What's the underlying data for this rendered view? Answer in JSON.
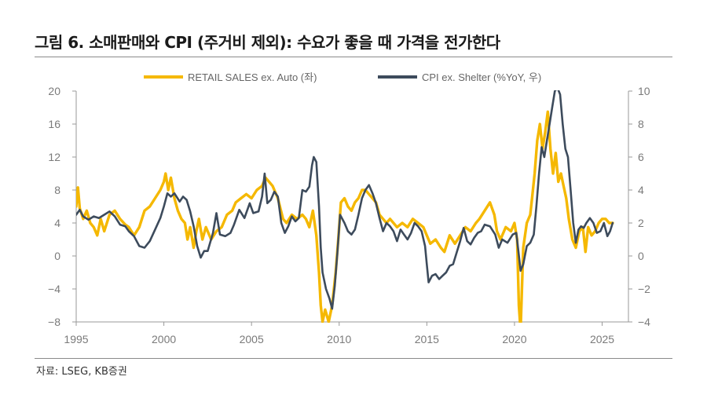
{
  "title": "그림 6. 소매판매와 CPI (주거비 제외): 수요가 좋을 때 가격을 전가한다",
  "source": "자료: LSEG, KB증권",
  "colors": {
    "retail": "#f5b800",
    "cpi": "#3d4b5c",
    "axis": "#999999",
    "tick": "#7a7a7a"
  },
  "chart_data": {
    "type": "line",
    "title": "그림 6. 소매판매와 CPI (주거비 제외): 수요가 좋을 때 가격을 전가한다",
    "xlabel": "",
    "ylabel": "",
    "x_ticks": [
      1995,
      2000,
      2005,
      2010,
      2015,
      2020,
      2025
    ],
    "x_tick_labels": [
      "1995",
      "2000",
      "2005",
      "2010",
      "2015",
      "2020",
      "2025"
    ],
    "xlim": [
      1995,
      2026.5
    ],
    "y_left": {
      "lim": [
        -8,
        20
      ],
      "ticks": [
        20,
        16,
        12,
        8,
        4,
        0,
        -4,
        -8
      ],
      "tick_labels": [
        "20",
        "16",
        "12",
        "8",
        "4",
        "0",
        "−4",
        "−8"
      ]
    },
    "y_right": {
      "lim": [
        -4,
        10
      ],
      "ticks": [
        10,
        8,
        6,
        4,
        2,
        0,
        -2,
        -4
      ],
      "tick_labels": [
        "10",
        "8",
        "6",
        "4",
        "2",
        "0",
        "−2",
        "−4"
      ]
    },
    "legend_position": "top-center",
    "series": [
      {
        "name": "RETAIL SALES ex. Auto (좌)",
        "axis": "left",
        "color": "#f5b800",
        "points": [
          [
            1995.0,
            6.0
          ],
          [
            1995.1,
            8.3
          ],
          [
            1995.2,
            5.8
          ],
          [
            1995.4,
            4.5
          ],
          [
            1995.6,
            5.5
          ],
          [
            1995.8,
            4.0
          ],
          [
            1996.0,
            3.5
          ],
          [
            1996.2,
            2.5
          ],
          [
            1996.4,
            4.5
          ],
          [
            1996.6,
            3.0
          ],
          [
            1996.9,
            5.0
          ],
          [
            1997.2,
            5.5
          ],
          [
            1997.5,
            4.5
          ],
          [
            1997.8,
            3.8
          ],
          [
            1998.0,
            3.5
          ],
          [
            1998.3,
            2.5
          ],
          [
            1998.6,
            3.5
          ],
          [
            1998.9,
            5.5
          ],
          [
            1999.2,
            6.0
          ],
          [
            1999.5,
            7.0
          ],
          [
            1999.8,
            8.0
          ],
          [
            2000.0,
            9.0
          ],
          [
            2000.1,
            10.0
          ],
          [
            2000.25,
            8.0
          ],
          [
            2000.4,
            9.5
          ],
          [
            2000.6,
            7.0
          ],
          [
            2000.8,
            5.5
          ],
          [
            2001.0,
            4.5
          ],
          [
            2001.2,
            4.0
          ],
          [
            2001.35,
            2.0
          ],
          [
            2001.5,
            3.5
          ],
          [
            2001.7,
            1.0
          ],
          [
            2001.85,
            3.0
          ],
          [
            2002.0,
            4.5
          ],
          [
            2002.2,
            2.0
          ],
          [
            2002.4,
            3.5
          ],
          [
            2002.7,
            2.0
          ],
          [
            2003.0,
            3.0
          ],
          [
            2003.3,
            3.5
          ],
          [
            2003.6,
            5.0
          ],
          [
            2003.9,
            5.5
          ],
          [
            2004.1,
            6.5
          ],
          [
            2004.4,
            7.0
          ],
          [
            2004.7,
            7.5
          ],
          [
            2005.0,
            7.0
          ],
          [
            2005.3,
            8.0
          ],
          [
            2005.6,
            8.5
          ],
          [
            2005.8,
            9.5
          ],
          [
            2006.0,
            9.0
          ],
          [
            2006.2,
            8.5
          ],
          [
            2006.5,
            7.0
          ],
          [
            2006.8,
            4.5
          ],
          [
            2007.0,
            4.0
          ],
          [
            2007.3,
            5.0
          ],
          [
            2007.6,
            4.5
          ],
          [
            2007.9,
            5.0
          ],
          [
            2008.1,
            4.5
          ],
          [
            2008.3,
            3.5
          ],
          [
            2008.5,
            5.5
          ],
          [
            2008.7,
            2.5
          ],
          [
            2008.85,
            -2.0
          ],
          [
            2008.95,
            -6.0
          ],
          [
            2009.05,
            -8.0
          ],
          [
            2009.2,
            -6.5
          ],
          [
            2009.4,
            -8.0
          ],
          [
            2009.6,
            -6.0
          ],
          [
            2009.8,
            -2.0
          ],
          [
            2009.95,
            2.0
          ],
          [
            2010.1,
            6.5
          ],
          [
            2010.3,
            7.0
          ],
          [
            2010.5,
            6.0
          ],
          [
            2010.7,
            5.5
          ],
          [
            2010.9,
            6.5
          ],
          [
            2011.1,
            7.0
          ],
          [
            2011.3,
            8.0
          ],
          [
            2011.5,
            8.0
          ],
          [
            2011.7,
            7.5
          ],
          [
            2011.9,
            7.0
          ],
          [
            2012.1,
            6.5
          ],
          [
            2012.3,
            5.0
          ],
          [
            2012.5,
            4.5
          ],
          [
            2012.7,
            4.0
          ],
          [
            2012.9,
            4.5
          ],
          [
            2013.1,
            4.0
          ],
          [
            2013.3,
            3.5
          ],
          [
            2013.6,
            4.0
          ],
          [
            2013.9,
            3.5
          ],
          [
            2014.2,
            4.5
          ],
          [
            2014.5,
            4.0
          ],
          [
            2014.8,
            3.5
          ],
          [
            2015.0,
            2.5
          ],
          [
            2015.2,
            1.5
          ],
          [
            2015.5,
            2.0
          ],
          [
            2015.8,
            1.0
          ],
          [
            2016.0,
            0.5
          ],
          [
            2016.3,
            2.5
          ],
          [
            2016.6,
            1.5
          ],
          [
            2016.9,
            2.5
          ],
          [
            2017.2,
            3.5
          ],
          [
            2017.5,
            3.0
          ],
          [
            2017.8,
            4.0
          ],
          [
            2018.0,
            4.5
          ],
          [
            2018.3,
            5.5
          ],
          [
            2018.6,
            6.5
          ],
          [
            2018.85,
            5.0
          ],
          [
            2019.0,
            3.0
          ],
          [
            2019.2,
            2.0
          ],
          [
            2019.5,
            3.5
          ],
          [
            2019.8,
            3.0
          ],
          [
            2020.0,
            4.0
          ],
          [
            2020.15,
            2.0
          ],
          [
            2020.25,
            -6.0
          ],
          [
            2020.35,
            -9.0
          ],
          [
            2020.5,
            1.0
          ],
          [
            2020.7,
            4.0
          ],
          [
            2020.9,
            5.0
          ],
          [
            2021.0,
            7.0
          ],
          [
            2021.15,
            10.0
          ],
          [
            2021.3,
            14.0
          ],
          [
            2021.45,
            16.0
          ],
          [
            2021.6,
            13.0
          ],
          [
            2021.75,
            15.0
          ],
          [
            2021.9,
            17.5
          ],
          [
            2022.05,
            13.0
          ],
          [
            2022.2,
            10.0
          ],
          [
            2022.35,
            12.5
          ],
          [
            2022.5,
            9.0
          ],
          [
            2022.65,
            10.0
          ],
          [
            2022.8,
            8.5
          ],
          [
            2022.95,
            7.0
          ],
          [
            2023.1,
            4.5
          ],
          [
            2023.3,
            2.0
          ],
          [
            2023.5,
            1.0
          ],
          [
            2023.7,
            3.0
          ],
          [
            2023.9,
            3.5
          ],
          [
            2024.05,
            0.5
          ],
          [
            2024.2,
            3.5
          ],
          [
            2024.4,
            2.5
          ],
          [
            2024.6,
            3.0
          ],
          [
            2024.8,
            4.0
          ],
          [
            2025.0,
            4.5
          ],
          [
            2025.2,
            4.5
          ],
          [
            2025.4,
            4.0
          ],
          [
            2025.6,
            4.0
          ]
        ]
      },
      {
        "name": "CPI ex. Shelter (%YoY, 우)",
        "axis": "right",
        "color": "#3d4b5c",
        "points": [
          [
            1995.0,
            2.5
          ],
          [
            1995.2,
            2.8
          ],
          [
            1995.4,
            2.4
          ],
          [
            1995.7,
            2.2
          ],
          [
            1996.0,
            2.4
          ],
          [
            1996.3,
            2.3
          ],
          [
            1996.6,
            2.5
          ],
          [
            1996.9,
            2.7
          ],
          [
            1997.2,
            2.4
          ],
          [
            1997.5,
            1.9
          ],
          [
            1997.8,
            1.8
          ],
          [
            1998.0,
            1.5
          ],
          [
            1998.3,
            1.2
          ],
          [
            1998.6,
            0.6
          ],
          [
            1998.9,
            0.5
          ],
          [
            1999.2,
            0.9
          ],
          [
            1999.5,
            1.6
          ],
          [
            1999.8,
            2.3
          ],
          [
            2000.0,
            3.0
          ],
          [
            2000.2,
            3.8
          ],
          [
            2000.4,
            3.6
          ],
          [
            2000.6,
            3.8
          ],
          [
            2000.9,
            3.3
          ],
          [
            2001.1,
            3.6
          ],
          [
            2001.3,
            3.4
          ],
          [
            2001.5,
            2.7
          ],
          [
            2001.7,
            1.8
          ],
          [
            2001.9,
            0.6
          ],
          [
            2002.1,
            -0.1
          ],
          [
            2002.3,
            0.3
          ],
          [
            2002.5,
            0.3
          ],
          [
            2002.8,
            1.4
          ],
          [
            2003.0,
            2.6
          ],
          [
            2003.2,
            1.3
          ],
          [
            2003.5,
            1.2
          ],
          [
            2003.8,
            1.4
          ],
          [
            2004.0,
            1.9
          ],
          [
            2004.3,
            2.8
          ],
          [
            2004.6,
            2.3
          ],
          [
            2004.9,
            3.2
          ],
          [
            2005.1,
            2.6
          ],
          [
            2005.4,
            2.7
          ],
          [
            2005.6,
            3.6
          ],
          [
            2005.75,
            5.0
          ],
          [
            2005.9,
            3.2
          ],
          [
            2006.1,
            3.4
          ],
          [
            2006.3,
            3.9
          ],
          [
            2006.5,
            3.6
          ],
          [
            2006.7,
            2.0
          ],
          [
            2006.9,
            1.4
          ],
          [
            2007.1,
            1.8
          ],
          [
            2007.3,
            2.4
          ],
          [
            2007.5,
            2.1
          ],
          [
            2007.7,
            2.3
          ],
          [
            2007.9,
            4.0
          ],
          [
            2008.1,
            3.9
          ],
          [
            2008.3,
            4.2
          ],
          [
            2008.45,
            5.5
          ],
          [
            2008.55,
            6.0
          ],
          [
            2008.7,
            5.7
          ],
          [
            2008.85,
            3.0
          ],
          [
            2008.95,
            0.5
          ],
          [
            2009.05,
            -1.0
          ],
          [
            2009.25,
            -2.0
          ],
          [
            2009.45,
            -2.6
          ],
          [
            2009.6,
            -3.2
          ],
          [
            2009.75,
            -1.8
          ],
          [
            2009.9,
            0.2
          ],
          [
            2010.05,
            2.5
          ],
          [
            2010.3,
            2.0
          ],
          [
            2010.5,
            1.5
          ],
          [
            2010.7,
            1.3
          ],
          [
            2010.9,
            1.6
          ],
          [
            2011.1,
            2.5
          ],
          [
            2011.3,
            3.5
          ],
          [
            2011.5,
            4.0
          ],
          [
            2011.7,
            4.3
          ],
          [
            2011.9,
            3.8
          ],
          [
            2012.1,
            3.2
          ],
          [
            2012.3,
            2.3
          ],
          [
            2012.5,
            1.5
          ],
          [
            2012.7,
            2.0
          ],
          [
            2012.9,
            1.8
          ],
          [
            2013.1,
            1.5
          ],
          [
            2013.3,
            0.9
          ],
          [
            2013.5,
            1.6
          ],
          [
            2013.7,
            1.3
          ],
          [
            2013.9,
            1.0
          ],
          [
            2014.1,
            1.4
          ],
          [
            2014.3,
            2.0
          ],
          [
            2014.5,
            1.8
          ],
          [
            2014.7,
            1.5
          ],
          [
            2014.9,
            0.6
          ],
          [
            2015.0,
            -0.5
          ],
          [
            2015.1,
            -1.6
          ],
          [
            2015.3,
            -1.2
          ],
          [
            2015.5,
            -1.1
          ],
          [
            2015.7,
            -1.4
          ],
          [
            2015.9,
            -1.2
          ],
          [
            2016.1,
            -1.0
          ],
          [
            2016.3,
            -0.6
          ],
          [
            2016.5,
            -0.5
          ],
          [
            2016.7,
            0.2
          ],
          [
            2016.9,
            0.9
          ],
          [
            2017.1,
            1.7
          ],
          [
            2017.3,
            0.9
          ],
          [
            2017.5,
            0.7
          ],
          [
            2017.7,
            1.1
          ],
          [
            2017.9,
            1.4
          ],
          [
            2018.1,
            1.5
          ],
          [
            2018.3,
            1.9
          ],
          [
            2018.6,
            1.8
          ],
          [
            2018.9,
            1.3
          ],
          [
            2019.1,
            0.5
          ],
          [
            2019.3,
            1.0
          ],
          [
            2019.6,
            0.8
          ],
          [
            2019.9,
            1.3
          ],
          [
            2020.1,
            1.4
          ],
          [
            2020.2,
            0.5
          ],
          [
            2020.35,
            -0.9
          ],
          [
            2020.5,
            -0.5
          ],
          [
            2020.7,
            0.6
          ],
          [
            2020.9,
            0.8
          ],
          [
            2021.1,
            1.3
          ],
          [
            2021.25,
            3.0
          ],
          [
            2021.4,
            5.0
          ],
          [
            2021.55,
            6.6
          ],
          [
            2021.7,
            6.0
          ],
          [
            2021.85,
            7.0
          ],
          [
            2022.0,
            8.0
          ],
          [
            2022.15,
            9.0
          ],
          [
            2022.3,
            10.0
          ],
          [
            2022.45,
            10.2
          ],
          [
            2022.6,
            9.8
          ],
          [
            2022.75,
            8.0
          ],
          [
            2022.9,
            6.5
          ],
          [
            2023.05,
            6.0
          ],
          [
            2023.2,
            4.0
          ],
          [
            2023.35,
            2.0
          ],
          [
            2023.5,
            0.8
          ],
          [
            2023.65,
            1.6
          ],
          [
            2023.8,
            1.8
          ],
          [
            2023.95,
            1.7
          ],
          [
            2024.1,
            2.0
          ],
          [
            2024.3,
            2.3
          ],
          [
            2024.5,
            2.0
          ],
          [
            2024.7,
            1.4
          ],
          [
            2024.9,
            1.5
          ],
          [
            2025.1,
            2.0
          ],
          [
            2025.3,
            1.2
          ],
          [
            2025.45,
            1.5
          ],
          [
            2025.6,
            2.0
          ]
        ]
      }
    ]
  }
}
